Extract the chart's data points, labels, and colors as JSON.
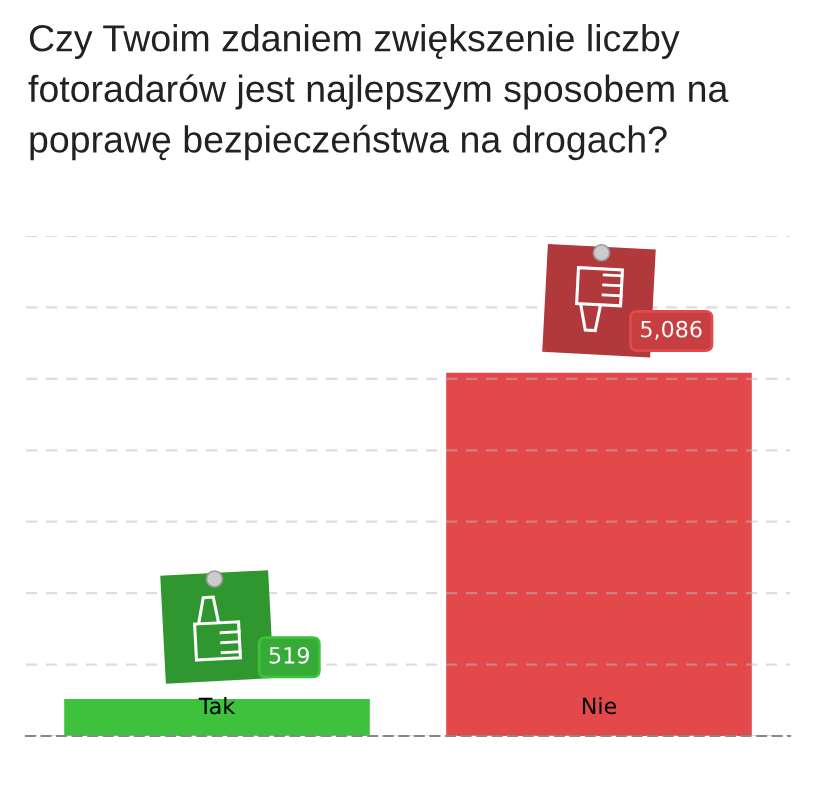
{
  "chart_data": {
    "type": "bar",
    "title": "Czy Twoim zdaniem zwiększenie liczby fotoradarów jest najlepszym sposobem na poprawę bezpieczeństwa na drogach?",
    "categories": [
      "Tak",
      "Nie"
    ],
    "values": [
      519,
      5086
    ],
    "colors": [
      "#3ec23e",
      "#e3484b"
    ],
    "value_labels": [
      "519",
      "5,086"
    ],
    "ylim": [
      0,
      7000
    ],
    "yticks": [
      {
        "value": 0,
        "label": null
      },
      {
        "value": 1000,
        "label": null
      },
      {
        "value": 2000,
        "label": null
      },
      {
        "value": 3000,
        "label": null
      },
      {
        "value": 4000,
        "label": null
      },
      {
        "value": 5000,
        "label": null
      },
      {
        "value": 6000,
        "label": null
      },
      {
        "value": 7000,
        "label": null
      }
    ],
    "grid": "y",
    "tick_labels": "x"
  }
}
